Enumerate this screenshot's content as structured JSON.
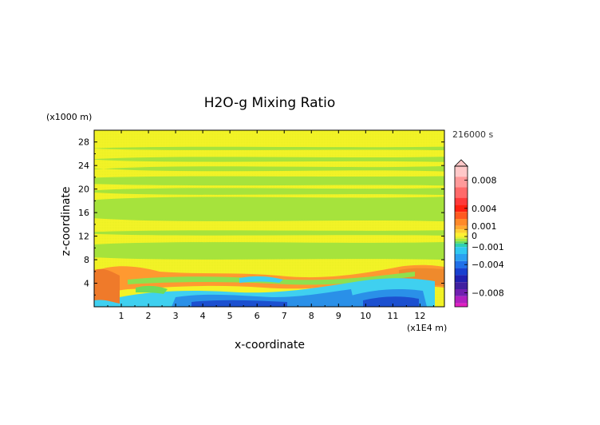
{
  "chart_data": {
    "type": "heatmap",
    "title": "H2O-g Mixing Ratio",
    "xlabel": "x-coordinate",
    "ylabel": "z-coordinate",
    "x_unit_label": "(x1E4 m)",
    "y_unit_label": "(x1000 m)",
    "time_label": "216000 s",
    "xlim": [
      0,
      12.9
    ],
    "ylim": [
      0,
      30
    ],
    "x_ticks": [
      "1",
      "2",
      "3",
      "4",
      "5",
      "6",
      "7",
      "8",
      "9",
      "10",
      "11",
      "12"
    ],
    "y_ticks": [
      "4",
      "8",
      "12",
      "16",
      "20",
      "24",
      "28"
    ],
    "colorbar": {
      "ticks": [
        "0.008",
        "0.004",
        "0.001",
        "0",
        "−0.001",
        "−0.004",
        "−0.008"
      ],
      "tick_values": [
        0.008,
        0.004,
        0.001,
        0,
        -0.001,
        -0.004,
        -0.008
      ],
      "range": [
        -0.01,
        0.01
      ]
    },
    "field_regions": {
      "background_value": 0,
      "upper_bands_value": -0.0005,
      "upper_bands_z_ranges": [
        [
          26.6,
          27.2
        ],
        [
          24.6,
          25.5
        ],
        [
          23.0,
          23.9
        ],
        [
          20.6,
          22.2
        ],
        [
          19.0,
          20.2
        ],
        [
          14.5,
          18.7
        ],
        [
          12.1,
          13.0
        ],
        [
          8.0,
          11.0
        ]
      ],
      "low_level_positive_value": 0.003,
      "low_level_negative_value": -0.005,
      "low_level_z_range": [
        0,
        7
      ]
    }
  }
}
